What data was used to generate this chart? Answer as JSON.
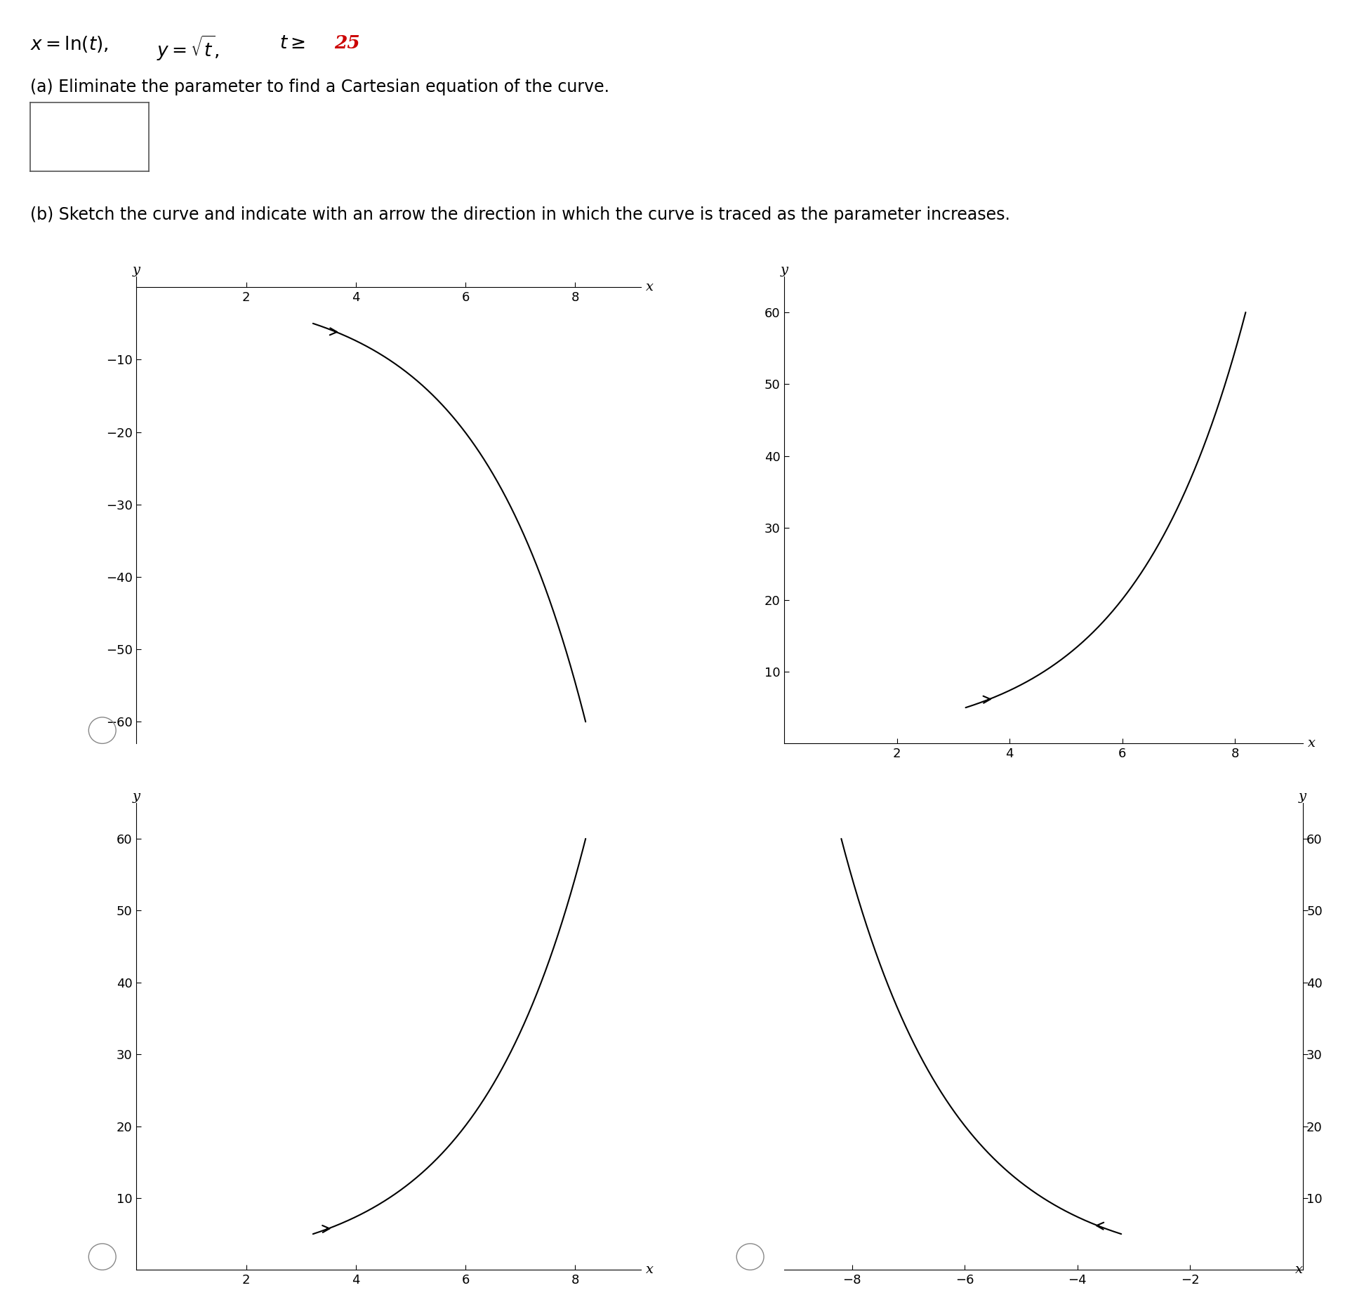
{
  "background_color": "#ffffff",
  "curve_color": "#000000",
  "red_color": "#cc0000",
  "t_min": 25,
  "t_max": 3600,
  "graphs": [
    {
      "id": 0,
      "xlim": [
        0,
        9.2
      ],
      "ylim": [
        -63,
        1.5
      ],
      "xticks": [
        2,
        4,
        6,
        8
      ],
      "yticks": [
        -60,
        -50,
        -40,
        -30,
        -20,
        -10
      ],
      "x_sign": 1,
      "y_sign": -1,
      "arrow_t": 38,
      "circle": true
    },
    {
      "id": 1,
      "xlim": [
        0,
        9.2
      ],
      "ylim": [
        0,
        65
      ],
      "xticks": [
        2,
        4,
        6,
        8
      ],
      "yticks": [
        10,
        20,
        30,
        40,
        50,
        60
      ],
      "x_sign": 1,
      "y_sign": 1,
      "arrow_t": 38,
      "circle": false
    },
    {
      "id": 2,
      "xlim": [
        0,
        9.2
      ],
      "ylim": [
        0,
        65
      ],
      "xticks": [
        2,
        4,
        6,
        8
      ],
      "yticks": [
        10,
        20,
        30,
        40,
        50,
        60
      ],
      "x_sign": 1,
      "y_sign": 1,
      "arrow_t": 33,
      "circle": true
    },
    {
      "id": 3,
      "xlim": [
        -9.2,
        0
      ],
      "ylim": [
        0,
        65
      ],
      "xticks": [
        -8,
        -6,
        -4,
        -2
      ],
      "yticks": [
        10,
        20,
        30,
        40,
        50,
        60
      ],
      "x_sign": -1,
      "y_sign": 1,
      "arrow_t": 38,
      "circle": true
    }
  ]
}
